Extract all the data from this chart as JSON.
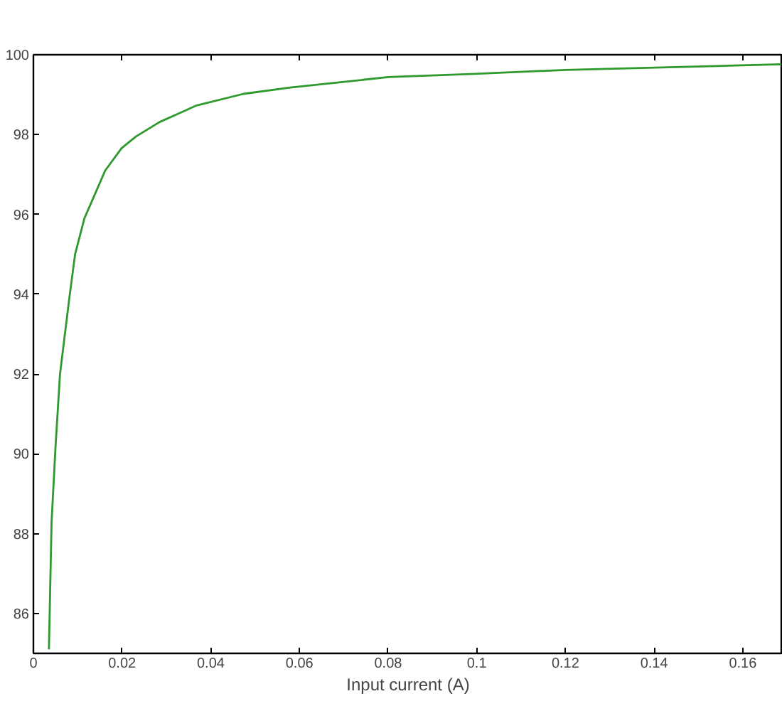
{
  "chart_data": {
    "type": "line",
    "xlabel": "Input current (A)",
    "x": [
      0.0035,
      0.0041,
      0.005,
      0.006,
      0.0081,
      0.0094,
      0.0115,
      0.0162,
      0.0199,
      0.0231,
      0.0284,
      0.0368,
      0.0474,
      0.0579,
      0.0801,
      0.0996,
      0.12,
      0.1687
    ],
    "series": [
      {
        "color": "#2e9a2e",
        "values": [
          85.1,
          88.3,
          90.2,
          92.0,
          93.9,
          95.0,
          95.9,
          97.1,
          97.66,
          97.95,
          98.31,
          98.73,
          99.02,
          99.18,
          99.44,
          99.52,
          99.62,
          99.76
        ]
      }
    ],
    "xlim": [
      0,
      0.169
    ],
    "ylim": [
      85,
      100
    ],
    "xticks": [
      0,
      0.02,
      0.04,
      0.06,
      0.08,
      0.1,
      0.12,
      0.14,
      0.16
    ],
    "yticks": [
      86,
      88,
      90,
      92,
      94,
      96,
      98,
      100
    ],
    "grid": false
  }
}
